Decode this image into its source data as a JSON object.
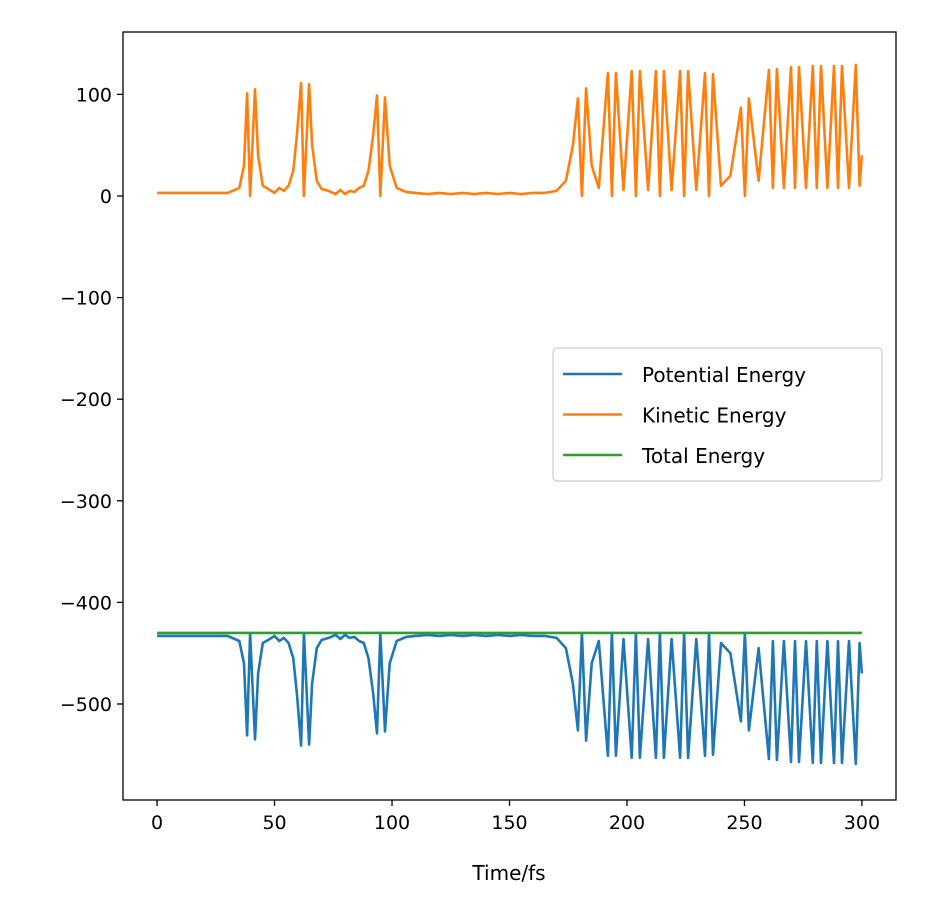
{
  "chart_data": {
    "type": "line",
    "title": "",
    "xlabel": "Time/fs",
    "ylabel": "",
    "xlim": [
      -14.5,
      314.5
    ],
    "ylim": [
      -594.5,
      161.4
    ],
    "xticks": [
      0,
      50,
      100,
      150,
      200,
      250,
      300
    ],
    "xtick_labels": [
      "0",
      "50",
      "100",
      "150",
      "200",
      "250",
      "300"
    ],
    "yticks": [
      100,
      0,
      -100,
      -200,
      -300,
      -400,
      -500
    ],
    "ytick_labels": [
      "100",
      "0",
      "−100",
      "−200",
      "−300",
      "−400",
      "−500"
    ],
    "grid": false,
    "legend_position": "center-right",
    "x": [
      0,
      30,
      35,
      37,
      38.3,
      39.6,
      41.7,
      43,
      45,
      48,
      50,
      52,
      54,
      56,
      58,
      59.5,
      61.3,
      62.5,
      64.7,
      66,
      68,
      70,
      73,
      76,
      78,
      80,
      82,
      84,
      86,
      88,
      90,
      92,
      93.6,
      95,
      97,
      99,
      102,
      106,
      110,
      115,
      120,
      125,
      130,
      135,
      140,
      145,
      150,
      155,
      160,
      165,
      170,
      174,
      177,
      179.1,
      180.8,
      182.6,
      185,
      188,
      191.9,
      193.6,
      195.3,
      198.5,
      202,
      203.8,
      205.5,
      209,
      212.3,
      214,
      215.7,
      219,
      222.6,
      224.3,
      226,
      229.5,
      233.2,
      234.9,
      236.6,
      240,
      244,
      248.5,
      250.2,
      251.9,
      256,
      260.4,
      262.1,
      263.8,
      266.8,
      269.8,
      271.5,
      273.2,
      276.2,
      279.1,
      280.8,
      282.6,
      285.3,
      288.1,
      289.8,
      291.5,
      294.5,
      297.4,
      299,
      300
    ],
    "series": [
      {
        "name": "Potential Energy",
        "color": "#1f77b4",
        "values": [
          -433,
          -433,
          -438,
          -460,
          -531,
          -430,
          -535,
          -470,
          -440,
          -436,
          -433,
          -438,
          -435,
          -440,
          -455,
          -490,
          -541,
          -430,
          -540,
          -480,
          -445,
          -437,
          -435,
          -432,
          -436,
          -432,
          -435,
          -434,
          -438,
          -440,
          -455,
          -490,
          -529,
          -430,
          -527,
          -460,
          -438,
          -434,
          -433,
          -432,
          -433,
          -432,
          -433,
          -432,
          -433,
          -432,
          -433,
          -432,
          -433,
          -433,
          -435,
          -445,
          -480,
          -526,
          -430,
          -536,
          -460,
          -438,
          -551,
          -430,
          -551,
          -436,
          -553,
          -430,
          -553,
          -436,
          -553,
          -430,
          -553,
          -436,
          -553,
          -430,
          -553,
          -436,
          -551,
          -430,
          -550,
          -440,
          -450,
          -517,
          -430,
          -526,
          -445,
          -554,
          -438,
          -555,
          -438,
          -557,
          -438,
          -557,
          -438,
          -558,
          -438,
          -558,
          -438,
          -558,
          -438,
          -558,
          -438,
          -559,
          -440,
          -470
        ]
      },
      {
        "name": "Kinetic Energy",
        "color": "#ff7f0e",
        "values": [
          3,
          3,
          8,
          30,
          101,
          0,
          105,
          40,
          10,
          6,
          3,
          8,
          5,
          10,
          25,
          60,
          111,
          0,
          110,
          50,
          15,
          7,
          5,
          2,
          6,
          2,
          5,
          4,
          8,
          10,
          25,
          60,
          99,
          0,
          97,
          30,
          8,
          4,
          3,
          2,
          3,
          2,
          3,
          2,
          3,
          2,
          3,
          2,
          3,
          3,
          5,
          15,
          50,
          96,
          0,
          106,
          30,
          8,
          121,
          0,
          121,
          6,
          123,
          0,
          123,
          6,
          123,
          0,
          123,
          6,
          123,
          0,
          123,
          6,
          121,
          0,
          120,
          10,
          20,
          87,
          0,
          96,
          15,
          124,
          8,
          125,
          8,
          127,
          8,
          127,
          8,
          128,
          8,
          128,
          8,
          128,
          8,
          128,
          8,
          129,
          10,
          40
        ]
      },
      {
        "name": "Total Energy",
        "color": "#2ca02c",
        "values": [
          -430,
          -430,
          -430,
          -430,
          -430,
          -430,
          -430,
          -430,
          -430,
          -430,
          -430,
          -430,
          -430,
          -430,
          -430,
          -430,
          -430,
          -430,
          -430,
          -430,
          -430,
          -430,
          -430,
          -430,
          -430,
          -430,
          -430,
          -430,
          -430,
          -430,
          -430,
          -430,
          -430,
          -430,
          -430,
          -430,
          -430,
          -430,
          -430,
          -430,
          -430,
          -430,
          -430,
          -430,
          -430,
          -430,
          -430,
          -430,
          -430,
          -430,
          -430,
          -430,
          -430,
          -430,
          -430,
          -430,
          -430,
          -430,
          -430,
          -430,
          -430,
          -430,
          -430,
          -430,
          -430,
          -430,
          -430,
          -430,
          -430,
          -430,
          -430,
          -430,
          -430,
          -430,
          -430,
          -430,
          -430,
          -430,
          -430,
          -430,
          -430,
          -430,
          -430,
          -430,
          -430,
          -430,
          -430,
          -430,
          -430,
          -430,
          -430,
          -430,
          -430,
          -430,
          -430,
          -430,
          -430,
          -430,
          -430,
          -430,
          -430,
          -430
        ]
      }
    ]
  }
}
